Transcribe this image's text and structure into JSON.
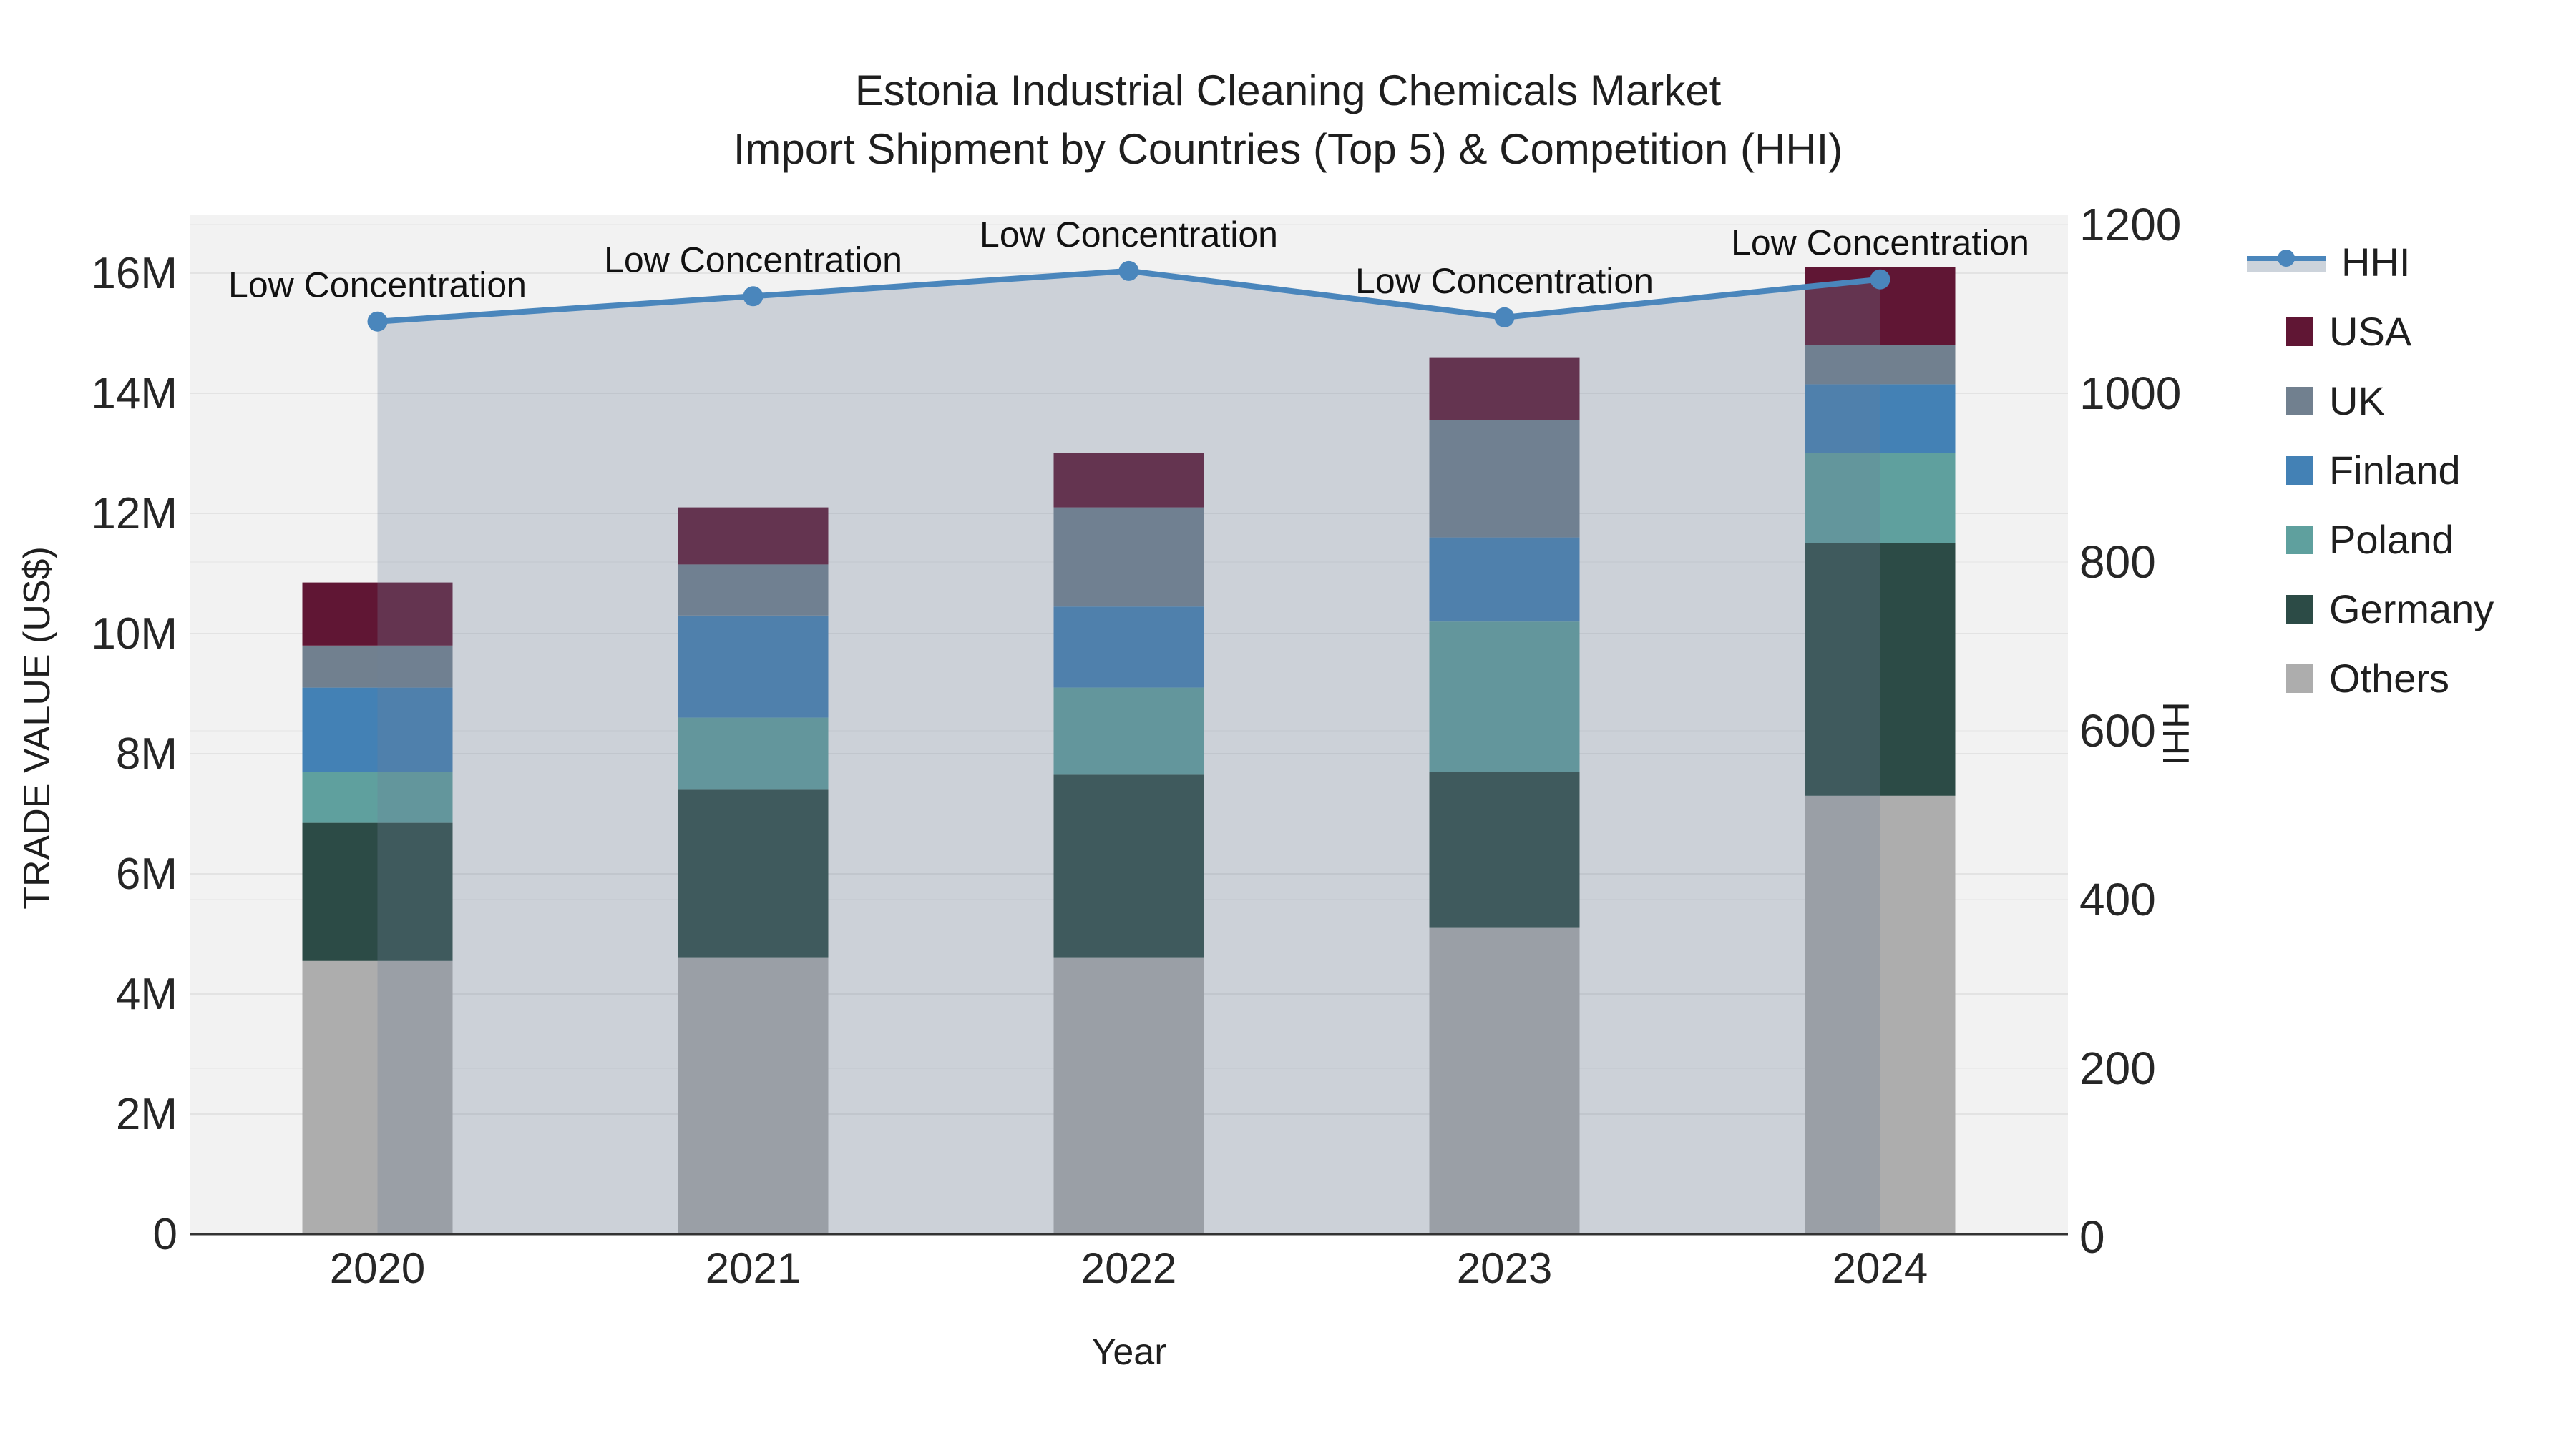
{
  "title": {
    "line1": "Estonia Industrial Cleaning Chemicals Market",
    "line2": "Import Shipment by Countries (Top 5) & Competition (HHI)"
  },
  "axes": {
    "y_left": {
      "title": "TRADE VALUE (US$)",
      "tick_labels": [
        "0",
        "2M",
        "4M",
        "6M",
        "8M",
        "10M",
        "12M",
        "14M",
        "16M"
      ],
      "tick_values": [
        0,
        2,
        4,
        6,
        8,
        10,
        12,
        14,
        16
      ],
      "range_millions": [
        0,
        17
      ]
    },
    "y_right": {
      "title": "HHI",
      "tick_labels": [
        "0",
        "200",
        "400",
        "600",
        "800",
        "1000",
        "1200"
      ],
      "tick_values": [
        0,
        200,
        400,
        600,
        800,
        1000,
        1200
      ],
      "range": [
        0,
        1200
      ]
    },
    "x": {
      "title": "Year",
      "categories": [
        "2020",
        "2021",
        "2022",
        "2023",
        "2024"
      ]
    }
  },
  "legend": {
    "entries": [
      {
        "label": "HHI",
        "type": "line",
        "color": "#4A86BC"
      },
      {
        "label": "USA",
        "type": "swatch",
        "color": "#601634"
      },
      {
        "label": "UK",
        "type": "swatch",
        "color": "#71808F"
      },
      {
        "label": "Finland",
        "type": "swatch",
        "color": "#4381B5"
      },
      {
        "label": "Poland",
        "type": "swatch",
        "color": "#5FA09E"
      },
      {
        "label": "Germany",
        "type": "swatch",
        "color": "#2C4B46"
      },
      {
        "label": "Others",
        "type": "swatch",
        "color": "#ADADAD"
      }
    ]
  },
  "colors": {
    "plot_bg": "#F2F2F2",
    "grid_left": "#E3E3E3",
    "grid_right": "#EBEBEB",
    "baseline": "#333333",
    "hhi_line": "#4A86BC",
    "hhi_area_fill": "rgba(110,128,152,0.29)",
    "text": "#262626"
  },
  "chart_data": {
    "type": "bar",
    "stacked": true,
    "categories": [
      "2020",
      "2021",
      "2022",
      "2023",
      "2024"
    ],
    "values_unit": "million US$",
    "series": [
      {
        "name": "Others",
        "color": "#ADADAD",
        "values": [
          4.55,
          4.6,
          4.6,
          5.1,
          7.3
        ]
      },
      {
        "name": "Germany",
        "color": "#2C4B46",
        "values": [
          2.3,
          2.8,
          3.05,
          2.6,
          4.2
        ]
      },
      {
        "name": "Poland",
        "color": "#5FA09E",
        "values": [
          0.85,
          1.2,
          1.45,
          2.5,
          1.5
        ]
      },
      {
        "name": "Finland",
        "color": "#4381B5",
        "values": [
          1.4,
          1.7,
          1.35,
          1.4,
          1.15
        ]
      },
      {
        "name": "UK",
        "color": "#71808F",
        "values": [
          0.7,
          0.85,
          1.65,
          1.95,
          0.65
        ]
      },
      {
        "name": "USA",
        "color": "#601634",
        "values": [
          1.05,
          0.95,
          0.9,
          1.05,
          1.3
        ]
      }
    ],
    "totals_millions": [
      10.85,
      12.1,
      13.0,
      14.6,
      16.1
    ],
    "line_series": {
      "name": "HHI",
      "axis": "right",
      "color": "#4A86BC",
      "area_fill": "rgba(110,128,152,0.29)",
      "values": [
        1085,
        1115,
        1145,
        1090,
        1135
      ]
    },
    "annotations": [
      "Low Concentration",
      "Low Concentration",
      "Low Concentration",
      "Low Concentration",
      "Low Concentration"
    ],
    "layout_hints": {
      "legend_position": "right",
      "grid": true,
      "bar_stack_order_bottom_to_top": [
        "Others",
        "Germany",
        "Poland",
        "Finland",
        "UK",
        "USA"
      ]
    }
  }
}
